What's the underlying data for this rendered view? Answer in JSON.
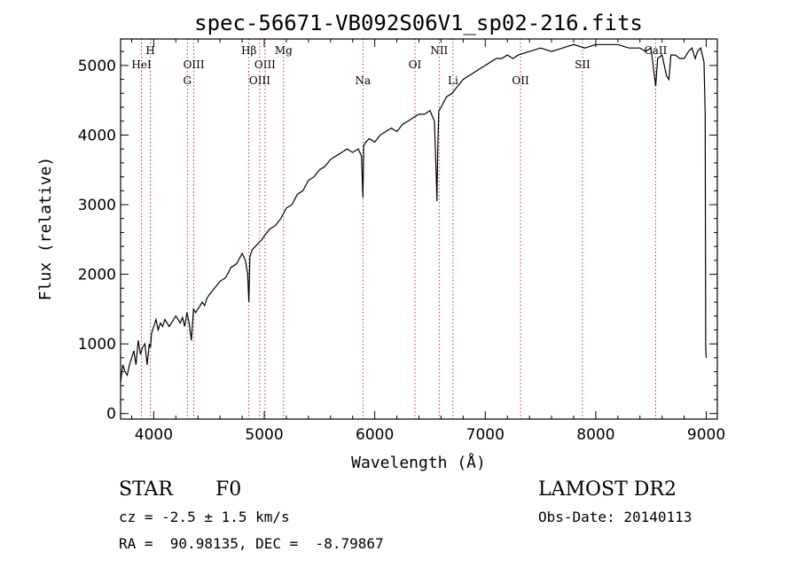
{
  "chart_data": {
    "type": "line",
    "title": "spec-56671-VB092S06V1_sp02-216.fits",
    "xlabel": "Wavelength (Å)",
    "ylabel": "Flux (relative)",
    "xlim": [
      3700,
      9100
    ],
    "ylim": [
      -80,
      5380
    ],
    "xticks": [
      4000,
      5000,
      6000,
      7000,
      8000,
      9000
    ],
    "yticks": [
      0,
      1000,
      2000,
      3000,
      4000,
      5000
    ],
    "grid": false,
    "series": [
      {
        "x": [
          3700,
          3720,
          3740,
          3760,
          3780,
          3800,
          3820,
          3840,
          3860,
          3880,
          3900,
          3920,
          3940,
          3960,
          3970,
          3980,
          4000,
          4020,
          4040,
          4060,
          4080,
          4100,
          4120,
          4140,
          4160,
          4180,
          4200,
          4220,
          4240,
          4260,
          4280,
          4300,
          4320,
          4340,
          4360,
          4380,
          4400,
          4420,
          4440,
          4460,
          4480,
          4500,
          4550,
          4600,
          4650,
          4700,
          4750,
          4800,
          4830,
          4850,
          4861,
          4870,
          4890,
          4920,
          4950,
          4980,
          5000,
          5050,
          5100,
          5150,
          5200,
          5250,
          5300,
          5350,
          5400,
          5450,
          5500,
          5550,
          5600,
          5650,
          5700,
          5750,
          5800,
          5850,
          5880,
          5893,
          5900,
          5920,
          5950,
          6000,
          6050,
          6100,
          6150,
          6200,
          6250,
          6300,
          6350,
          6400,
          6450,
          6500,
          6540,
          6555,
          6563,
          6570,
          6580,
          6600,
          6650,
          6700,
          6750,
          6800,
          6850,
          6900,
          6950,
          7000,
          7050,
          7100,
          7150,
          7200,
          7250,
          7300,
          7400,
          7500,
          7600,
          7700,
          7800,
          7900,
          8000,
          8100,
          8200,
          8300,
          8400,
          8450,
          8498,
          8520,
          8542,
          8560,
          8600,
          8640,
          8662,
          8680,
          8720,
          8760,
          8800,
          8840,
          8870,
          8900,
          8920,
          8950,
          8980,
          8990,
          8995,
          9000
        ],
        "y": [
          450,
          700,
          600,
          550,
          700,
          800,
          900,
          700,
          1050,
          850,
          950,
          1000,
          700,
          1000,
          950,
          1150,
          1250,
          1350,
          1200,
          1300,
          1250,
          1350,
          1300,
          1250,
          1300,
          1350,
          1400,
          1350,
          1300,
          1380,
          1250,
          1450,
          1300,
          1050,
          1500,
          1450,
          1500,
          1550,
          1600,
          1550,
          1650,
          1700,
          1800,
          1900,
          1950,
          2100,
          2150,
          2300,
          2200,
          2000,
          1600,
          2250,
          2350,
          2400,
          2450,
          2500,
          2550,
          2650,
          2700,
          2800,
          2950,
          3000,
          3150,
          3200,
          3350,
          3400,
          3500,
          3550,
          3650,
          3700,
          3750,
          3800,
          3750,
          3800,
          3700,
          3100,
          3850,
          3900,
          3950,
          3900,
          4000,
          4050,
          4100,
          4050,
          4150,
          4200,
          4250,
          4300,
          4300,
          4350,
          4200,
          3500,
          3050,
          3800,
          4350,
          4400,
          4550,
          4600,
          4700,
          4800,
          4850,
          4900,
          4950,
          5000,
          5050,
          5100,
          5100,
          5150,
          5100,
          5150,
          5200,
          5250,
          5200,
          5250,
          5300,
          5250,
          5300,
          5300,
          5300,
          5250,
          5250,
          5200,
          5250,
          5000,
          4700,
          5100,
          5150,
          4850,
          4800,
          5150,
          5150,
          5100,
          5100,
          5200,
          5250,
          5100,
          5200,
          5250,
          5050,
          4300,
          950,
          800
        ]
      }
    ],
    "lines": [
      {
        "label": "HeI",
        "x": 3889,
        "row": 2
      },
      {
        "label": "H",
        "x": 3970,
        "row": 1
      },
      {
        "label": "G",
        "x": 4304,
        "row": 3
      },
      {
        "label": "OIII",
        "x": 4363,
        "row": 2
      },
      {
        "label": "Hβ",
        "x": 4861,
        "row": 1
      },
      {
        "label": "OIII",
        "x": 4959,
        "row": 3
      },
      {
        "label": "OIII",
        "x": 5007,
        "row": 2
      },
      {
        "label": "Mg",
        "x": 5175,
        "row": 1
      },
      {
        "label": "Na",
        "x": 5893,
        "row": 3
      },
      {
        "label": "OI",
        "x": 6364,
        "row": 2
      },
      {
        "label": "NII",
        "x": 6583,
        "row": 1
      },
      {
        "label": "Li",
        "x": 6708,
        "row": 3
      },
      {
        "label": "OII",
        "x": 7319,
        "row": 3
      },
      {
        "label": "SII",
        "x": 7880,
        "row": 2
      },
      {
        "label": "CaII",
        "x": 8542,
        "row": 1
      }
    ]
  },
  "info": {
    "class": "STAR",
    "subclass": "F0",
    "survey": "LAMOST DR2",
    "cz": "cz = -2.5 ± 1.5 km/s",
    "obsdate": "Obs-Date: 20140113",
    "radec": "RA =  90.98135, DEC =  -8.79867"
  }
}
